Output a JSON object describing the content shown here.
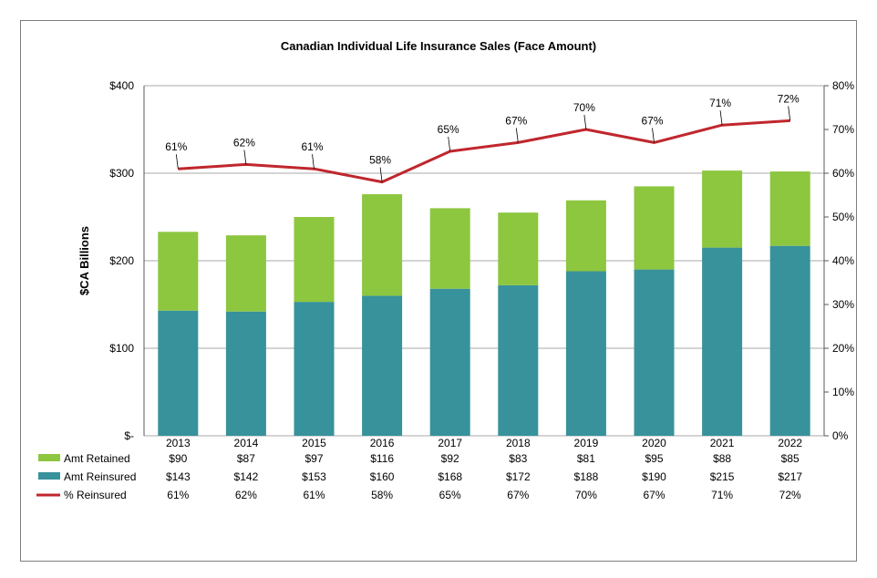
{
  "chart_data": {
    "type": "bar",
    "title": "Canadian Individual Life Insurance Sales (Face Amount)",
    "ylabel": "$CA Billions",
    "ylim": [
      0,
      400
    ],
    "y2lim": [
      0,
      80
    ],
    "y_ticks": [
      "$-",
      "$100",
      "$200",
      "$300",
      "$400"
    ],
    "y2_ticks": [
      "0%",
      "10%",
      "20%",
      "30%",
      "40%",
      "50%",
      "60%",
      "70%",
      "80%"
    ],
    "categories": [
      "2013",
      "2014",
      "2015",
      "2016",
      "2017",
      "2018",
      "2019",
      "2020",
      "2021",
      "2022"
    ],
    "stacked": true,
    "grid": true,
    "legend_placement": "table below chart",
    "series": [
      {
        "name": "Amt Reinsured",
        "values": [
          143,
          142,
          153,
          160,
          168,
          172,
          188,
          190,
          215,
          217
        ],
        "color": "#37929b",
        "labels": [
          "$143",
          "$142",
          "$153",
          "$160",
          "$168",
          "$172",
          "$188",
          "$190",
          "$215",
          "$217"
        ]
      },
      {
        "name": "Amt Retained",
        "values": [
          90,
          87,
          97,
          116,
          92,
          83,
          81,
          95,
          88,
          85
        ],
        "color": "#8dc63f",
        "labels": [
          "$90",
          "$87",
          "$97",
          "$116",
          "$92",
          "$83",
          "$81",
          "$95",
          "$88",
          "$85"
        ]
      },
      {
        "name": "% Reinsured",
        "axis": "secondary",
        "type": "line",
        "values": [
          61,
          62,
          61,
          58,
          65,
          67,
          70,
          67,
          71,
          72
        ],
        "color": "#c0272d",
        "labels": [
          "61%",
          "62%",
          "61%",
          "58%",
          "65%",
          "67%",
          "70%",
          "67%",
          "71%",
          "72%"
        ]
      }
    ],
    "table_rows": [
      "Amt Retained",
      "Amt Reinsured",
      "% Reinsured"
    ]
  }
}
